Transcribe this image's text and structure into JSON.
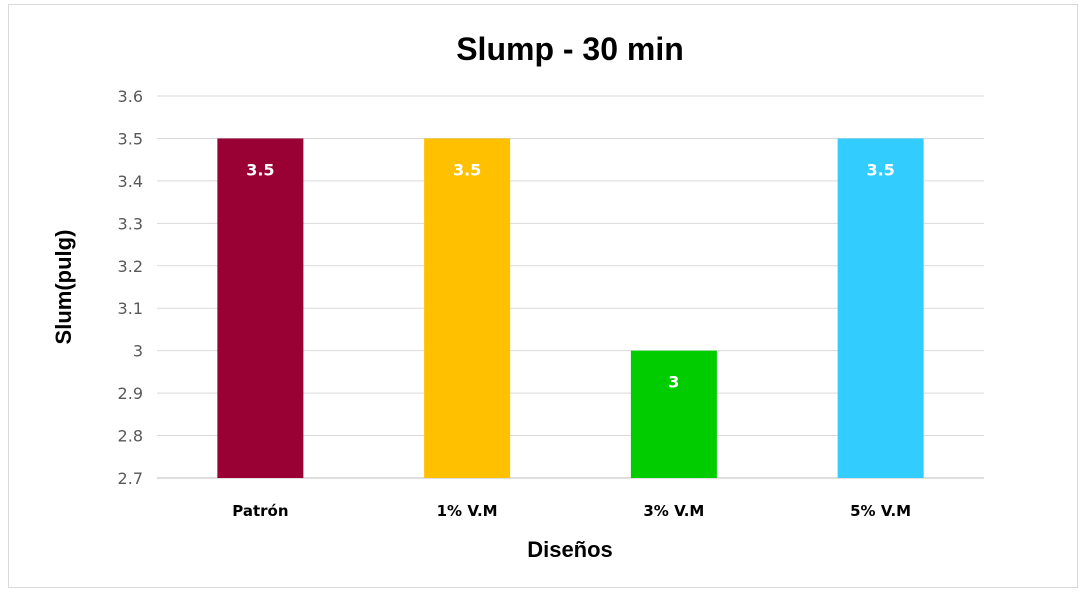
{
  "chart_data": {
    "type": "bar",
    "title": "Slump - 30 min",
    "xlabel": "Diseños",
    "ylabel": "Slum(pulg)",
    "categories": [
      "Patrón",
      "1% V.M",
      "3% V.M",
      "5% V.M"
    ],
    "values": [
      3.5,
      3.5,
      3,
      3.5
    ],
    "data_labels": [
      "3.5",
      "3.5",
      "3",
      "3.5"
    ],
    "colors": [
      "#990033",
      "#ffc000",
      "#00cc00",
      "#33ccff"
    ],
    "ylim": [
      2.7,
      3.6
    ],
    "yticks": [
      "2.7",
      "2.8",
      "2.9",
      "3",
      "3.1",
      "3.2",
      "3.3",
      "3.4",
      "3.5",
      "3.6"
    ],
    "grid": true,
    "gridline_color": "#d9d9d9",
    "legend": "none"
  }
}
